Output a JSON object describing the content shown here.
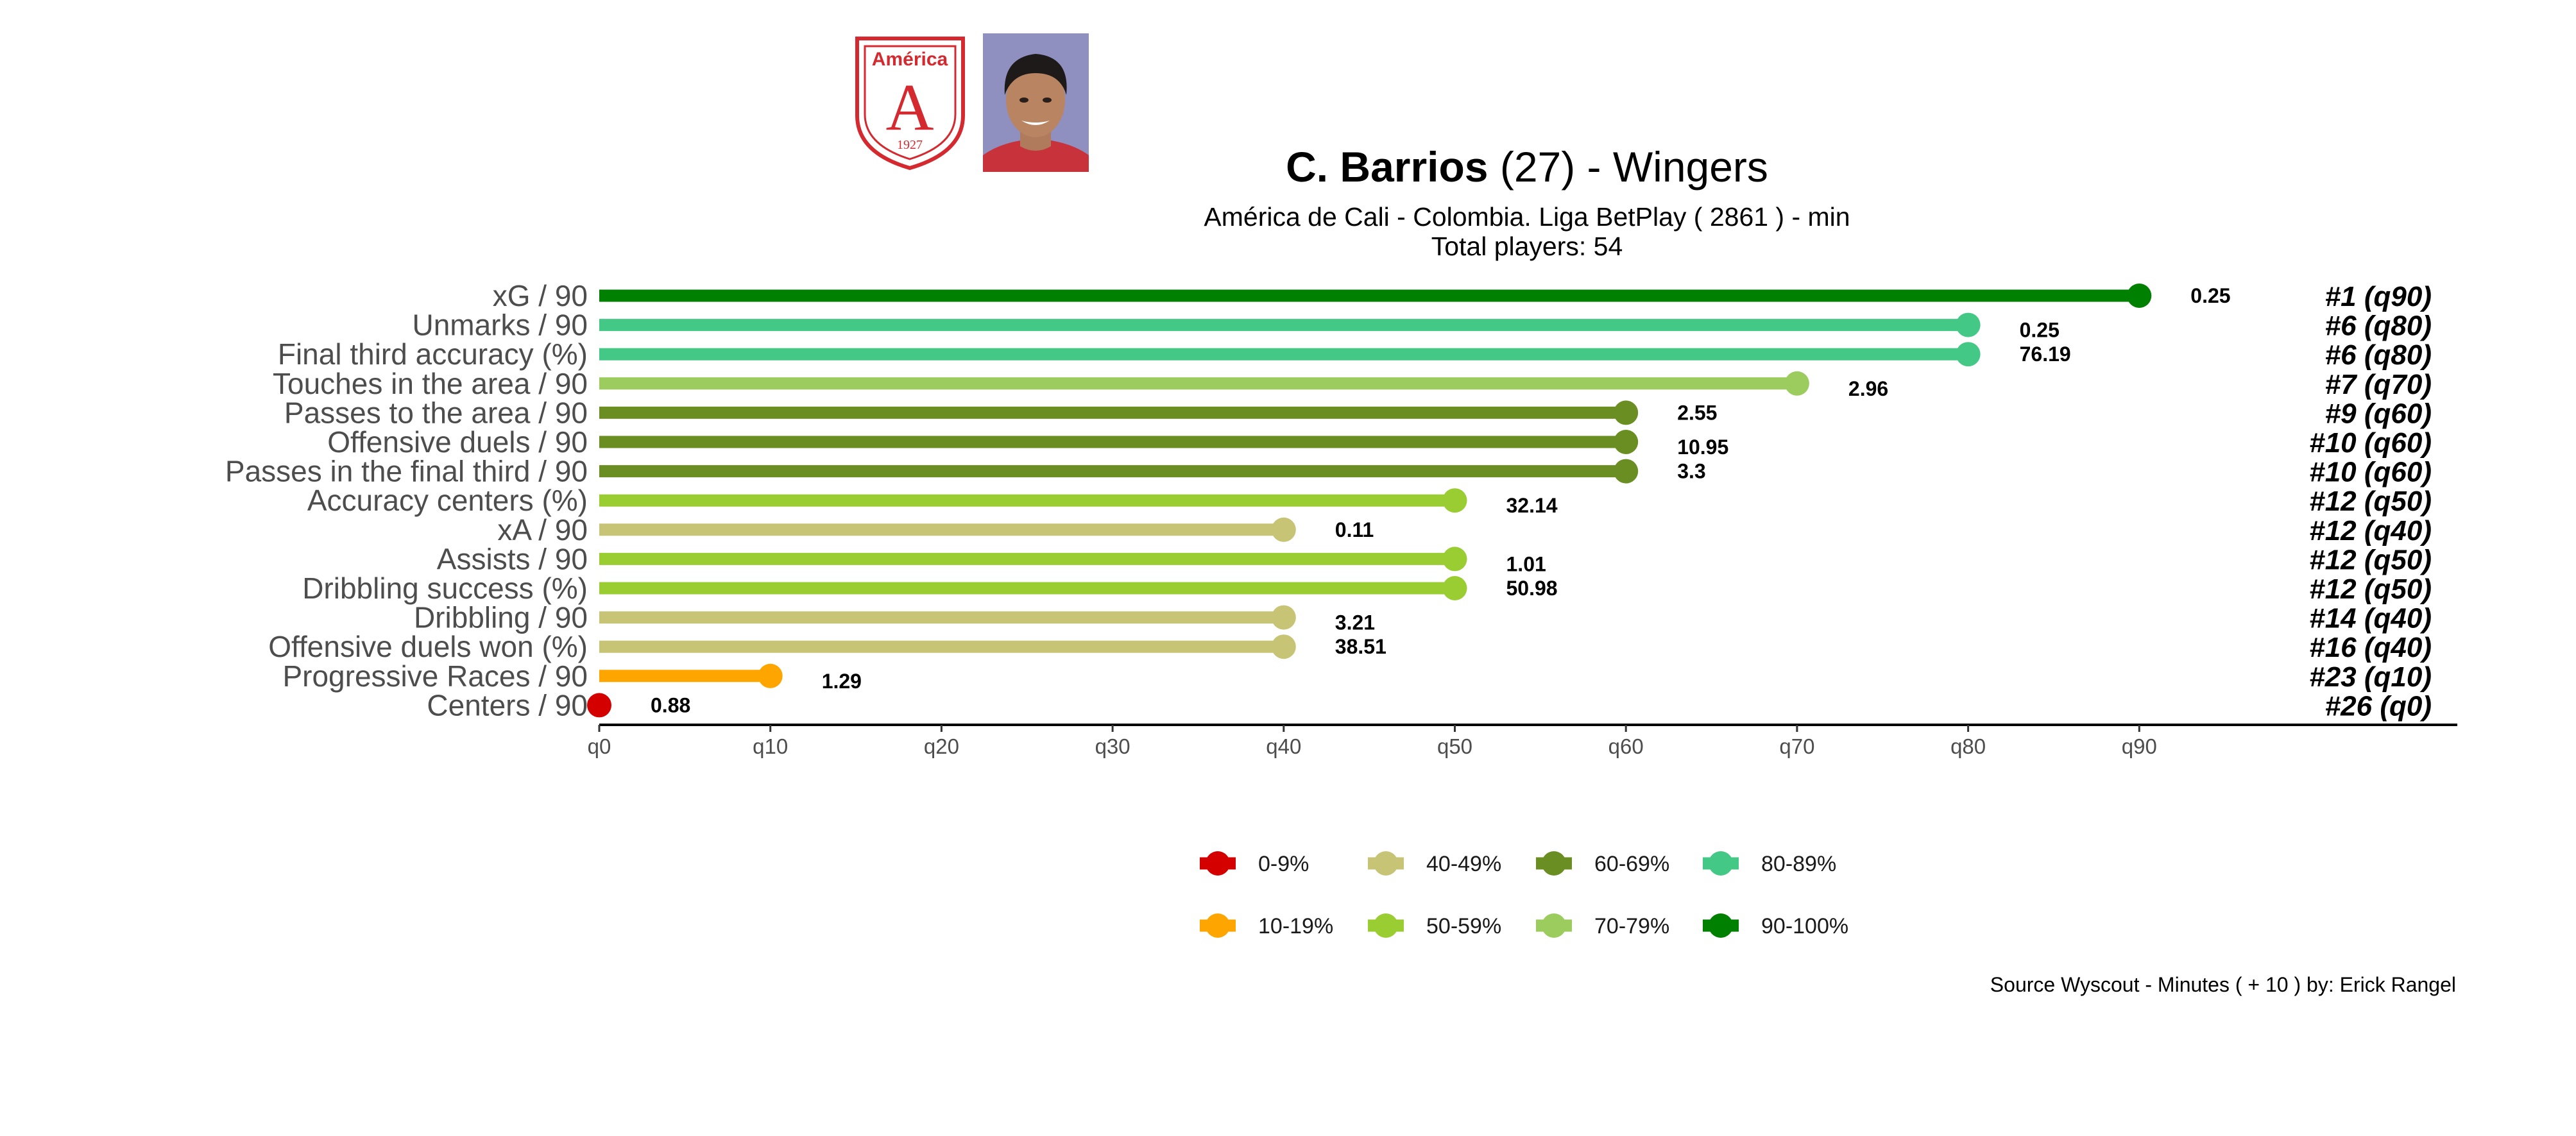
{
  "header": {
    "player_name": "C. Barrios",
    "age_text": " (27) -  ",
    "position": "Wingers",
    "subtitle_line1": "América de Cali  -  Colombia. Liga BetPlay  ( 2861 ) - min",
    "subtitle_line2": "Total players:  54"
  },
  "crest": {
    "club_text": "América",
    "letter": "A",
    "year": "1927",
    "color": "#d42a2f"
  },
  "caption": "Source Wyscout - Minutes ( + 10 ) by: Erick Rangel",
  "chart_data": {
    "type": "lollipop",
    "x_axis": {
      "ticks": [
        "q0",
        "q10",
        "q20",
        "q30",
        "q40",
        "q50",
        "q60",
        "q70",
        "q80",
        "q90"
      ],
      "range": [
        0,
        90
      ]
    },
    "metrics": [
      {
        "label": "xG / 90",
        "percentile": 90,
        "value": "0.25",
        "rank": "#1 (q90)",
        "color": "#008000"
      },
      {
        "label": "Unmarks / 90",
        "percentile": 80,
        "value": "0.25",
        "rank": "#6 (q80)",
        "color": "#44c886"
      },
      {
        "label": "Final third accuracy (%)",
        "percentile": 80,
        "value": "76.19",
        "rank": "#6 (q80)",
        "color": "#44c886"
      },
      {
        "label": "Touches in the area / 90",
        "percentile": 70,
        "value": "2.96",
        "rank": "#7 (q70)",
        "color": "#9ccc5e"
      },
      {
        "label": "Passes to the area / 90",
        "percentile": 60,
        "value": "2.55",
        "rank": "#9 (q60)",
        "color": "#6b8e23"
      },
      {
        "label": "Offensive duels / 90",
        "percentile": 60,
        "value": "10.95",
        "rank": "#10 (q60)",
        "color": "#6b8e23"
      },
      {
        "label": "Passes in the final third / 90",
        "percentile": 60,
        "value": "3.3",
        "rank": "#10 (q60)",
        "color": "#6b8e23"
      },
      {
        "label": "Accuracy centers (%)",
        "percentile": 50,
        "value": "32.14",
        "rank": "#12 (q50)",
        "color": "#9acd32"
      },
      {
        "label": "xA / 90",
        "percentile": 40,
        "value": "0.11",
        "rank": "#12 (q40)",
        "color": "#c8c475"
      },
      {
        "label": "Assists / 90",
        "percentile": 50,
        "value": "1.01",
        "rank": "#12 (q50)",
        "color": "#9acd32"
      },
      {
        "label": "Dribbling success (%)",
        "percentile": 50,
        "value": "50.98",
        "rank": "#12 (q50)",
        "color": "#9acd32"
      },
      {
        "label": "Dribbling / 90",
        "percentile": 40,
        "value": "3.21",
        "rank": "#14 (q40)",
        "color": "#c8c475"
      },
      {
        "label": "Offensive duels won (%)",
        "percentile": 40,
        "value": "38.51",
        "rank": "#16 (q40)",
        "color": "#c8c475"
      },
      {
        "label": "Progressive Races / 90",
        "percentile": 10,
        "value": "1.29",
        "rank": "#23 (q10)",
        "color": "#ffa500"
      },
      {
        "label": "Centers / 90",
        "percentile": 0,
        "value": "0.88",
        "rank": "#26 (q0)",
        "color": "#d40000"
      }
    ],
    "legend": [
      {
        "label": "0-9%",
        "color": "#d40000"
      },
      {
        "label": "40-49%",
        "color": "#c8c475"
      },
      {
        "label": "60-69%",
        "color": "#6b8e23"
      },
      {
        "label": "80-89%",
        "color": "#44c886"
      },
      {
        "label": "10-19%",
        "color": "#ffa500"
      },
      {
        "label": "50-59%",
        "color": "#9acd32"
      },
      {
        "label": "70-79%",
        "color": "#9ccc5e"
      },
      {
        "label": "90-100%",
        "color": "#008000"
      }
    ],
    "legend_position": "bottom-center"
  }
}
